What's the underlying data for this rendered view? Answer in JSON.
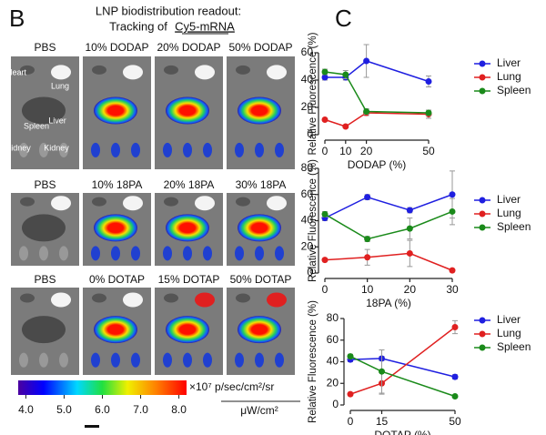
{
  "panel_b": {
    "label": "B",
    "title_line1": "LNP biodistribution readout:",
    "title_line2_prefix": "Tracking of",
    "title_line2_underlined": "Cy5-mRNA",
    "rows": [
      [
        "PBS",
        "10% DODAP",
        "20% DODAP",
        "50% DODAP"
      ],
      [
        "PBS",
        "10% 18PA",
        "20% 18PA",
        "30% 18PA"
      ],
      [
        "PBS",
        "0% DOTAP",
        "15% DOTAP",
        "50% DOTAP"
      ]
    ],
    "organ_labels": [
      "Heart",
      "Lung",
      "Spleen",
      "Liver",
      "Kidney",
      "Kidney"
    ],
    "colorbar": {
      "clim": [
        3.8,
        8.2
      ],
      "ticks": [
        {
          "value": 4,
          "label": "4.0"
        },
        {
          "value": 5,
          "label": "5.0"
        },
        {
          "value": 6,
          "label": "6.0"
        },
        {
          "value": 7,
          "label": "7.0"
        },
        {
          "value": 8,
          "label": "8.0"
        }
      ],
      "unit_top": "×10⁷ p/sec/cm²/sr",
      "unit_bottom": "μW/cm²"
    }
  },
  "panel_c": {
    "label": "C"
  },
  "chart_data": [
    {
      "type": "line",
      "x_label": "DODAP (%)",
      "y_label": "Relative Fluorescence (%)",
      "x": [
        0,
        10,
        20,
        50
      ],
      "xlim": [
        0,
        50
      ],
      "xticks": [
        0,
        10,
        20,
        50
      ],
      "ylim": [
        0,
        60
      ],
      "yticks": [
        0,
        20,
        40,
        60
      ],
      "legend": "right",
      "series": [
        {
          "name": "Liver",
          "color": "#1f1fe0",
          "values": [
            42,
            42,
            54,
            39
          ],
          "errors": [
            2,
            2,
            12,
            4
          ]
        },
        {
          "name": "Lung",
          "color": "#e02020",
          "values": [
            11,
            6,
            16,
            15
          ],
          "errors": [
            1,
            1,
            2,
            3
          ]
        },
        {
          "name": "Spleen",
          "color": "#1a8a1a",
          "values": [
            46,
            44,
            17,
            16
          ],
          "errors": [
            2,
            3,
            2,
            2
          ]
        }
      ]
    },
    {
      "type": "line",
      "x_label": "18PA (%)",
      "y_label": "Relative Fluorescence (%)",
      "x": [
        0,
        10,
        20,
        30
      ],
      "xlim": [
        0,
        30
      ],
      "xticks": [
        0,
        10,
        20,
        30
      ],
      "ylim": [
        0,
        80
      ],
      "yticks": [
        0,
        20,
        40,
        60,
        80
      ],
      "legend": "right",
      "series": [
        {
          "name": "Liver",
          "color": "#1f1fe0",
          "values": [
            42,
            58,
            48,
            60
          ],
          "errors": [
            2,
            2,
            2,
            18
          ]
        },
        {
          "name": "Lung",
          "color": "#e02020",
          "values": [
            10,
            12,
            15,
            2
          ],
          "errors": [
            1,
            6,
            10,
            1
          ]
        },
        {
          "name": "Spleen",
          "color": "#1a8a1a",
          "values": [
            45,
            26,
            34,
            47
          ],
          "errors": [
            2,
            2,
            8,
            10
          ]
        }
      ]
    },
    {
      "type": "line",
      "x_label": "DOTAP (%)",
      "y_label": "Relative Fluorescence (%)",
      "x": [
        0,
        15,
        50
      ],
      "xlim": [
        0,
        50
      ],
      "xticks": [
        0,
        15,
        50
      ],
      "ylim": [
        0,
        80
      ],
      "yticks": [
        0,
        20,
        40,
        60,
        80
      ],
      "legend": "right",
      "series": [
        {
          "name": "Liver",
          "color": "#1f1fe0",
          "values": [
            42,
            43,
            26
          ],
          "errors": [
            2,
            2,
            2
          ]
        },
        {
          "name": "Lung",
          "color": "#e02020",
          "values": [
            10,
            20,
            72
          ],
          "errors": [
            1,
            10,
            6
          ]
        },
        {
          "name": "Spleen",
          "color": "#1a8a1a",
          "values": [
            45,
            31,
            8
          ],
          "errors": [
            2,
            20,
            1
          ]
        }
      ]
    }
  ]
}
